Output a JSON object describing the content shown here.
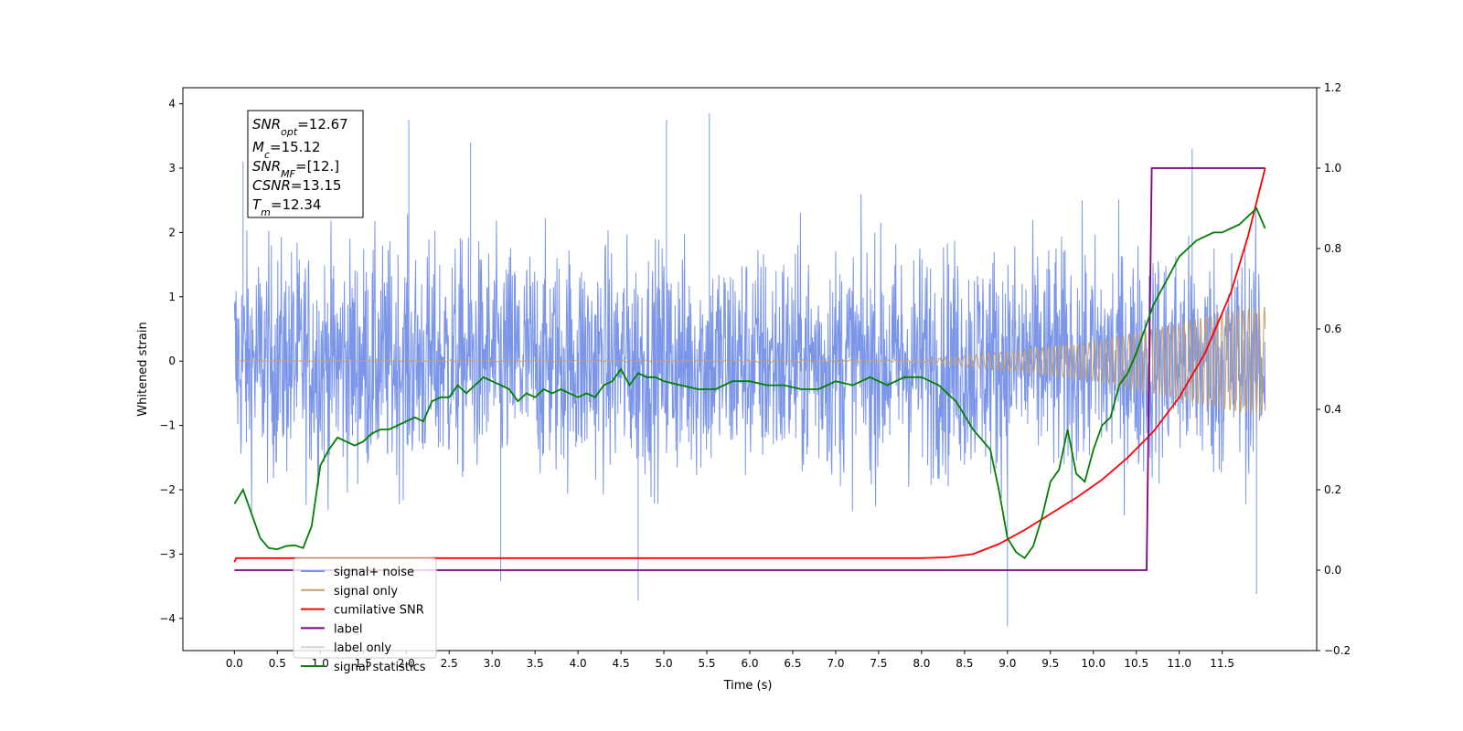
{
  "chart_data": {
    "type": "line",
    "xlabel": "Time (s)",
    "ylabel": "Whitened strain",
    "xlim": [
      -0.6,
      12.6
    ],
    "ylim": [
      -4.5,
      4.25
    ],
    "y2lim": [
      -0.2,
      1.2
    ],
    "x_ticks": [
      "0.0",
      "0.5",
      "1.0",
      "1.5",
      "2.0",
      "2.5",
      "3.0",
      "3.5",
      "4.0",
      "4.5",
      "5.0",
      "5.5",
      "6.0",
      "6.5",
      "7.0",
      "7.5",
      "8.0",
      "8.5",
      "9.0",
      "9.5",
      "10.0",
      "10.5",
      "11.0",
      "11.5"
    ],
    "y_ticks": [
      "4",
      "3",
      "2",
      "1",
      "0",
      "−1",
      "−2",
      "−3",
      "−4"
    ],
    "y2_ticks": [
      "1.2",
      "1.0",
      "0.8",
      "0.6",
      "0.4",
      "0.2",
      "0.0",
      "−0.2"
    ],
    "stats_box": {
      "snr_opt": {
        "base": "SNR",
        "sub": "opt",
        "value": "=12.67"
      },
      "mc": {
        "base": "M",
        "sub": "c",
        "value": "=15.12"
      },
      "snr_mf": {
        "base": "SNR",
        "sub": "MF",
        "value": "=[12.]"
      },
      "csnr": {
        "base": "CSNR",
        "sub": "",
        "value": "=13.15"
      },
      "tm": {
        "base": "T",
        "sub": "m",
        "value": "=12.34"
      }
    },
    "legend_position": "lower-left",
    "series": [
      {
        "name": "signal+ noise",
        "color": "#7b96e8",
        "axis": "left",
        "x_range": [
          0,
          12
        ],
        "y_envelope": [
          -2.5,
          2.5
        ],
        "peaks": [
          [
            0.1,
            3.1
          ],
          [
            2.03,
            3.75
          ],
          [
            2.75,
            3.4
          ],
          [
            5.03,
            3.75
          ],
          [
            5.53,
            3.85
          ],
          [
            11.15,
            3.3
          ],
          [
            4.7,
            -3.72
          ],
          [
            3.1,
            -3.42
          ],
          [
            9.0,
            -4.12
          ],
          [
            11.9,
            -3.62
          ]
        ]
      },
      {
        "name": "signal only",
        "color": "#c8a06e",
        "axis": "left",
        "x": [
          0,
          8.0,
          9.0,
          10.0,
          10.5,
          11.0,
          11.5,
          12.0
        ],
        "amplitude": [
          0,
          0.02,
          0.15,
          0.3,
          0.45,
          0.6,
          0.75,
          0.85
        ]
      },
      {
        "name": "cumilative SNR",
        "color": "#ff0000",
        "axis": "right",
        "x": [
          0,
          0.02,
          8.0,
          8.3,
          8.6,
          8.9,
          9.2,
          9.5,
          9.8,
          10.1,
          10.4,
          10.7,
          11.0,
          11.3,
          11.6,
          11.8,
          12.0
        ],
        "y": [
          0.02,
          0.03,
          0.03,
          0.032,
          0.04,
          0.065,
          0.1,
          0.14,
          0.18,
          0.225,
          0.28,
          0.345,
          0.43,
          0.54,
          0.69,
          0.83,
          1.0
        ]
      },
      {
        "name": "label",
        "color": "#800080",
        "axis": "right",
        "x": [
          0,
          10.62,
          10.68,
          12.0
        ],
        "y": [
          0.0,
          0.0,
          1.0,
          1.0
        ]
      },
      {
        "name": "label only",
        "color": "#d3d3d3",
        "axis": "right",
        "x": [],
        "y": []
      },
      {
        "name": "signal statistics",
        "color": "#008000",
        "axis": "right",
        "x": [
          0.0,
          0.1,
          0.2,
          0.3,
          0.4,
          0.5,
          0.6,
          0.7,
          0.8,
          0.9,
          1.0,
          1.1,
          1.2,
          1.3,
          1.4,
          1.5,
          1.6,
          1.7,
          1.8,
          1.9,
          2.0,
          2.1,
          2.2,
          2.3,
          2.4,
          2.5,
          2.6,
          2.7,
          2.8,
          2.9,
          3.0,
          3.1,
          3.2,
          3.3,
          3.4,
          3.5,
          3.6,
          3.7,
          3.8,
          3.9,
          4.0,
          4.1,
          4.2,
          4.3,
          4.4,
          4.5,
          4.6,
          4.7,
          4.8,
          4.9,
          5.0,
          5.2,
          5.4,
          5.6,
          5.8,
          6.0,
          6.2,
          6.4,
          6.6,
          6.8,
          7.0,
          7.2,
          7.4,
          7.5,
          7.6,
          7.8,
          8.0,
          8.2,
          8.4,
          8.6,
          8.8,
          8.9,
          9.0,
          9.1,
          9.2,
          9.3,
          9.4,
          9.5,
          9.6,
          9.7,
          9.8,
          9.9,
          10.0,
          10.1,
          10.2,
          10.3,
          10.4,
          10.5,
          10.6,
          10.7,
          10.8,
          10.9,
          11.0,
          11.1,
          11.2,
          11.3,
          11.4,
          11.5,
          11.6,
          11.7,
          11.8,
          11.9,
          12.0
        ],
        "y": [
          0.165,
          0.2,
          0.14,
          0.08,
          0.055,
          0.052,
          0.06,
          0.062,
          0.055,
          0.11,
          0.26,
          0.3,
          0.33,
          0.32,
          0.31,
          0.32,
          0.34,
          0.35,
          0.35,
          0.36,
          0.37,
          0.38,
          0.37,
          0.42,
          0.43,
          0.43,
          0.46,
          0.44,
          0.46,
          0.48,
          0.47,
          0.46,
          0.45,
          0.42,
          0.44,
          0.43,
          0.45,
          0.44,
          0.45,
          0.44,
          0.43,
          0.44,
          0.43,
          0.46,
          0.47,
          0.5,
          0.46,
          0.49,
          0.48,
          0.48,
          0.47,
          0.46,
          0.45,
          0.45,
          0.47,
          0.47,
          0.46,
          0.46,
          0.45,
          0.45,
          0.47,
          0.46,
          0.48,
          0.47,
          0.46,
          0.48,
          0.48,
          0.46,
          0.42,
          0.35,
          0.3,
          0.2,
          0.08,
          0.045,
          0.03,
          0.06,
          0.13,
          0.22,
          0.25,
          0.35,
          0.24,
          0.22,
          0.3,
          0.36,
          0.38,
          0.46,
          0.49,
          0.54,
          0.6,
          0.66,
          0.7,
          0.74,
          0.78,
          0.8,
          0.82,
          0.83,
          0.84,
          0.84,
          0.85,
          0.86,
          0.88,
          0.9,
          0.85
        ]
      }
    ]
  }
}
